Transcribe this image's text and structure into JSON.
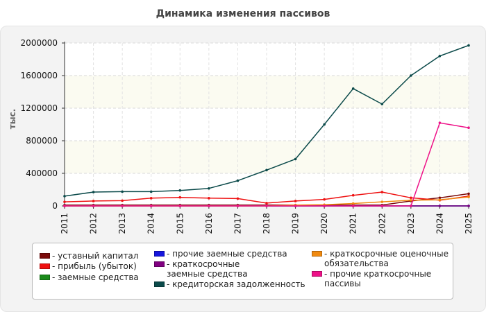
{
  "chart_data": {
    "type": "line",
    "title": "Динамика изменения пассивов",
    "ylabel": "тыс.",
    "xlabel": "",
    "categories": [
      "2011",
      "2012",
      "2013",
      "2014",
      "2015",
      "2016",
      "2017",
      "2018",
      "2019",
      "2020",
      "2021",
      "2022",
      "2023",
      "2024",
      "2025"
    ],
    "ylim": [
      0,
      2000000
    ],
    "yticks": [
      0,
      400000,
      800000,
      1200000,
      1600000,
      2000000
    ],
    "grid": true,
    "legend_position": "bottom",
    "series": [
      {
        "name": "- уставный капитал",
        "color": "#7a0a0a",
        "values": [
          10000,
          10000,
          10000,
          10000,
          10000,
          10000,
          10000,
          10000,
          10000,
          10000,
          10000,
          10000,
          60000,
          100000,
          150000
        ]
      },
      {
        "name": "- прибыль (убыток)",
        "color": "#ee1111",
        "values": [
          50000,
          60000,
          65000,
          95000,
          105000,
          95000,
          90000,
          35000,
          60000,
          80000,
          130000,
          170000,
          100000,
          70000,
          120000
        ]
      },
      {
        "name": "- заемные средства",
        "color": "#1a8a1a",
        "values": [
          0,
          0,
          0,
          0,
          0,
          0,
          0,
          0,
          0,
          0,
          0,
          0,
          0,
          0,
          0
        ]
      },
      {
        "name": "- прочие заемные средства",
        "color": "#1515dd",
        "values": [
          0,
          0,
          0,
          0,
          0,
          0,
          0,
          0,
          0,
          0,
          0,
          0,
          0,
          0,
          0
        ]
      },
      {
        "name": "- краткосрочные заемные средства",
        "color": "#800080",
        "values": [
          0,
          0,
          0,
          0,
          0,
          0,
          0,
          0,
          0,
          0,
          0,
          0,
          0,
          0,
          0
        ]
      },
      {
        "name": "- кредиторская задолженность",
        "color": "#0b4a4a",
        "values": [
          120000,
          170000,
          175000,
          175000,
          190000,
          215000,
          310000,
          440000,
          575000,
          1000000,
          1440000,
          1250000,
          1600000,
          1840000,
          1970000
        ]
      },
      {
        "name": "- краткосрочные оценочные обязательства",
        "color": "#f08a10",
        "values": [
          0,
          0,
          0,
          0,
          0,
          0,
          0,
          0,
          10000,
          15000,
          30000,
          50000,
          70000,
          75000,
          110000
        ]
      },
      {
        "name": "- прочие краткосрочные пассивы",
        "color": "#ee1188",
        "values": [
          0,
          0,
          0,
          0,
          0,
          0,
          0,
          0,
          0,
          0,
          0,
          0,
          0,
          1020000,
          960000
        ]
      }
    ]
  }
}
